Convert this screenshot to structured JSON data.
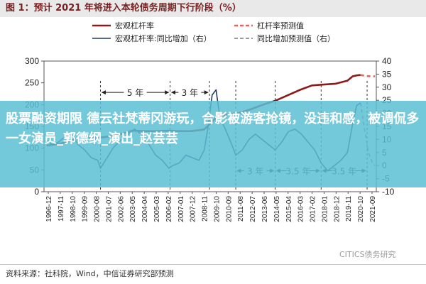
{
  "figure_title": "图 1：预计 2021 年将进入本轮债务周期下行阶段（%）",
  "overlay_text": "股票融资期限 德云社梵蒂冈游玩，合影被游客抢镜，没违和感，被调侃多一女演员_郭德纲_演出_赵芸芸",
  "footer_text": "资料来源：社科院，Wind，中信证券研究部预测",
  "watermark_text": "CITICS债务研究",
  "colors": {
    "leverage": "#8b1a1a",
    "leverage_forecast": "#e06666",
    "yoy": "#1f3b5e",
    "yoy_forecast": "#7a7a7a",
    "title_text": "#7a1f1f",
    "overlay_bg": "#5abed2"
  },
  "chart_data": {
    "type": "line",
    "title": "",
    "xlabel": "",
    "ylabel_left": "",
    "ylabel_right": "",
    "ylim_left": [
      0,
      300
    ],
    "ylim_right": [
      -10,
      40
    ],
    "left_ticks": [
      "0",
      "50",
      "100",
      "150",
      "200",
      "250",
      "300"
    ],
    "right_ticks": [
      "-10",
      "-5",
      "0",
      "5",
      "10",
      "15",
      "20",
      "25",
      "30",
      "35",
      "40"
    ],
    "x_tick_labels": [
      "1996-12",
      "1997-11",
      "1998-10",
      "1999-09",
      "2000-08",
      "2001-07",
      "2002-06",
      "2003-05",
      "2004-04",
      "2005-03",
      "2006-02",
      "2007-01",
      "2007-12",
      "2008-11",
      "2009-10",
      "2010-09",
      "2011-08",
      "2012-07",
      "2013-06",
      "2014-05",
      "2015-04",
      "2016-03",
      "2017-02",
      "2018-01",
      "2018-12",
      "2019-11",
      "2020-10",
      "2021-09"
    ],
    "legend": {
      "placement": "top",
      "items": [
        {
          "label": "宏观杠杆率",
          "style": "solid-thick",
          "color_key": "leverage"
        },
        {
          "label": "杠杆率预测值",
          "style": "dashed-thick",
          "color_key": "leverage_forecast"
        },
        {
          "label": "宏观杠杆率:同比增加（右）",
          "style": "solid",
          "color_key": "yoy"
        },
        {
          "label": "同比增加预测值（右）",
          "style": "dashed",
          "color_key": "yoy_forecast"
        }
      ]
    },
    "annotations": [
      {
        "label": "5 年",
        "from": 2001.0,
        "to": 2006.3,
        "level": 28
      },
      {
        "label": "3 年",
        "from": 2006.3,
        "to": 2009.3,
        "level": 28
      },
      {
        "label": "3 年",
        "from": 2011.3,
        "to": 2014.3,
        "level": -2
      },
      {
        "label": "3.5 年",
        "from": 2014.3,
        "to": 2017.8,
        "level": -2
      },
      {
        "label": "3.5 年",
        "from": 2017.8,
        "to": 2021.3,
        "level": -2
      }
    ],
    "cycle_markers": [
      2001.0,
      2006.3,
      2009.3,
      2011.3,
      2014.3,
      2017.8,
      2021.3
    ],
    "series": [
      {
        "name": "宏观杠杆率",
        "axis": "left",
        "x": [
          1996.9,
          1997.9,
          1998.8,
          1999.7,
          2000.6,
          2001.5,
          2002.5,
          2003.4,
          2004.3,
          2005.2,
          2006.1,
          2007.0,
          2007.9,
          2008.9,
          2009.8,
          2010.7,
          2011.6,
          2012.5,
          2013.4,
          2014.4,
          2015.3,
          2016.2,
          2017.1,
          2018.0,
          2018.9,
          2019.8,
          2020.2,
          2020.5,
          2020.8
        ],
        "values": [
          106,
          110,
          118,
          124,
          123,
          126,
          132,
          140,
          139,
          139,
          140,
          139,
          139,
          143,
          170,
          178,
          181,
          190,
          200,
          210,
          222,
          234,
          244,
          246,
          248,
          255,
          265,
          267,
          268
        ]
      },
      {
        "name": "杠杆率预测值",
        "axis": "left",
        "x": [
          2020.8,
          2021.2,
          2021.6,
          2021.9
        ],
        "values": [
          268,
          266,
          265,
          265
        ]
      },
      {
        "name": "宏观杠杆率:同比增加（右）",
        "axis": "right",
        "x": [
          1996.9,
          1997.3,
          1997.8,
          1998.3,
          1998.8,
          1999.3,
          1999.8,
          2000.3,
          2000.8,
          2001.0,
          2001.5,
          2002.0,
          2002.6,
          2003.1,
          2003.6,
          2004.1,
          2004.7,
          2005.2,
          2005.7,
          2006.2,
          2006.5,
          2007.0,
          2007.5,
          2008.0,
          2008.5,
          2008.9,
          2009.2,
          2009.5,
          2009.8,
          2010.1,
          2010.5,
          2011.0,
          2011.3,
          2011.8,
          2012.3,
          2012.8,
          2013.3,
          2013.8,
          2014.3,
          2014.8,
          2015.3,
          2015.8,
          2016.3,
          2016.8,
          2017.3,
          2017.8,
          2018.3,
          2018.8,
          2019.3,
          2019.8,
          2020.2,
          2020.5,
          2020.8
        ],
        "values": [
          10,
          8,
          9,
          11,
          12,
          8,
          6,
          3,
          2,
          -1,
          3,
          7,
          10,
          12,
          14,
          12,
          8,
          4,
          2,
          -1,
          0,
          1,
          4,
          3,
          2,
          6,
          15,
          27,
          29,
          18,
          14,
          8,
          4,
          6,
          10,
          12,
          10,
          8,
          6,
          9,
          13,
          14,
          12,
          9,
          6,
          1,
          -2,
          0,
          2,
          5,
          16,
          23,
          24
        ]
      },
      {
        "name": "同比增加预测值（右）",
        "axis": "right",
        "x": [
          2020.8,
          2021.1,
          2021.4,
          2021.7,
          2021.9
        ],
        "values": [
          24,
          14,
          5,
          1,
          0
        ]
      }
    ]
  }
}
